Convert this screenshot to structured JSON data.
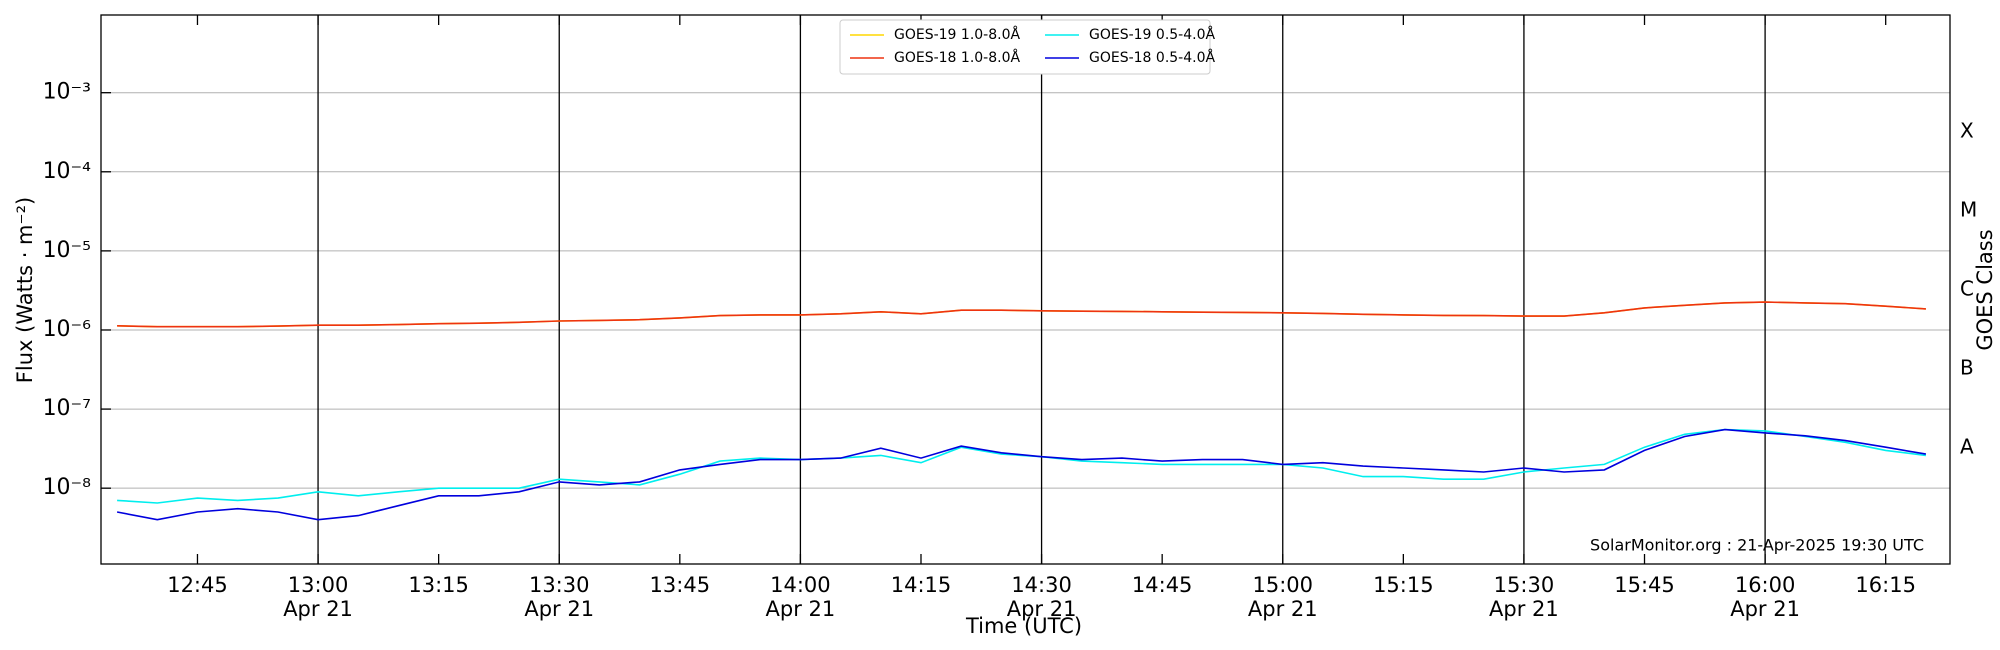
{
  "chart_data": {
    "type": "line",
    "xlabel": "Time (UTC)",
    "ylabel": "Flux (Watts · m⁻²)",
    "y2label": "GOES Class",
    "annotation": "SolarMonitor.org : 21-Apr-2025 19:30 UTC",
    "yscale": "log",
    "grid": true,
    "legend": "upper center",
    "xlim": [
      "12:33",
      "16:23"
    ],
    "xticks": [
      {
        "value": "12:45",
        "label": "12:45"
      },
      {
        "value": "13:00",
        "label": "13:00",
        "date": "Apr 21"
      },
      {
        "value": "13:15",
        "label": "13:15"
      },
      {
        "value": "13:30",
        "label": "13:30",
        "date": "Apr 21"
      },
      {
        "value": "13:45",
        "label": "13:45"
      },
      {
        "value": "14:00",
        "label": "14:00",
        "date": "Apr 21"
      },
      {
        "value": "14:15",
        "label": "14:15"
      },
      {
        "value": "14:30",
        "label": "14:30",
        "date": "Apr 21"
      },
      {
        "value": "14:45",
        "label": "14:45"
      },
      {
        "value": "15:00",
        "label": "15:00",
        "date": "Apr 21"
      },
      {
        "value": "15:15",
        "label": "15:15"
      },
      {
        "value": "15:30",
        "label": "15:30",
        "date": "Apr 21"
      },
      {
        "value": "15:45",
        "label": "15:45"
      },
      {
        "value": "16:00",
        "label": "16:00",
        "date": "Apr 21"
      },
      {
        "value": "16:15",
        "label": "16:15"
      }
    ],
    "ylim": [
      1.1e-09,
      0.0096
    ],
    "yticks": [
      {
        "value": 1e-08,
        "label": "10⁻⁸"
      },
      {
        "value": 1e-07,
        "label": "10⁻⁷"
      },
      {
        "value": 1e-06,
        "label": "10⁻⁶"
      },
      {
        "value": 1e-05,
        "label": "10⁻⁵"
      },
      {
        "value": 0.0001,
        "label": "10⁻⁴"
      },
      {
        "value": 0.001,
        "label": "10⁻³"
      }
    ],
    "y2lim": [
      1.1e-09,
      0.0096
    ],
    "y2ticks": [
      {
        "value": 3.2e-08,
        "label": "A"
      },
      {
        "value": 3.2e-07,
        "label": "B"
      },
      {
        "value": 3.2e-06,
        "label": "C"
      },
      {
        "value": 3.2e-05,
        "label": "M"
      },
      {
        "value": 0.00032,
        "label": "X"
      }
    ],
    "x": [
      "12:35",
      "12:40",
      "12:45",
      "12:50",
      "12:55",
      "13:00",
      "13:05",
      "13:10",
      "13:15",
      "13:20",
      "13:25",
      "13:30",
      "13:35",
      "13:40",
      "13:45",
      "13:50",
      "13:55",
      "14:00",
      "14:05",
      "14:10",
      "14:15",
      "14:20",
      "14:25",
      "14:30",
      "14:35",
      "14:40",
      "14:45",
      "14:50",
      "14:55",
      "15:00",
      "15:05",
      "15:10",
      "15:15",
      "15:20",
      "15:25",
      "15:30",
      "15:35",
      "15:40",
      "15:45",
      "15:50",
      "15:55",
      "16:00",
      "16:05",
      "16:10",
      "16:15",
      "16:20"
    ],
    "series": [
      {
        "name": "GOES-19 1.0-8.0Å",
        "color": "#ffd700",
        "values": [
          1.13e-06,
          1.1e-06,
          1.1e-06,
          1.1e-06,
          1.12e-06,
          1.15e-06,
          1.15e-06,
          1.17e-06,
          1.2e-06,
          1.22e-06,
          1.25e-06,
          1.3e-06,
          1.32e-06,
          1.35e-06,
          1.42e-06,
          1.52e-06,
          1.55e-06,
          1.55e-06,
          1.6e-06,
          1.7e-06,
          1.6e-06,
          1.78e-06,
          1.78e-06,
          1.75e-06,
          1.73e-06,
          1.72e-06,
          1.7e-06,
          1.68e-06,
          1.67e-06,
          1.65e-06,
          1.62e-06,
          1.58e-06,
          1.55e-06,
          1.53e-06,
          1.52e-06,
          1.5e-06,
          1.5e-06,
          1.65e-06,
          1.9e-06,
          2.05e-06,
          2.2e-06,
          2.25e-06,
          2.2e-06,
          2.15e-06,
          2e-06,
          1.85e-06
        ]
      },
      {
        "name": "GOES-18 1.0-8.0Å",
        "color": "#ee3311",
        "values": [
          1.13e-06,
          1.1e-06,
          1.1e-06,
          1.1e-06,
          1.12e-06,
          1.15e-06,
          1.15e-06,
          1.17e-06,
          1.2e-06,
          1.22e-06,
          1.25e-06,
          1.3e-06,
          1.32e-06,
          1.35e-06,
          1.42e-06,
          1.52e-06,
          1.55e-06,
          1.55e-06,
          1.6e-06,
          1.7e-06,
          1.6e-06,
          1.78e-06,
          1.78e-06,
          1.75e-06,
          1.73e-06,
          1.72e-06,
          1.7e-06,
          1.68e-06,
          1.67e-06,
          1.65e-06,
          1.62e-06,
          1.58e-06,
          1.55e-06,
          1.53e-06,
          1.52e-06,
          1.5e-06,
          1.5e-06,
          1.65e-06,
          1.9e-06,
          2.05e-06,
          2.2e-06,
          2.25e-06,
          2.2e-06,
          2.15e-06,
          2e-06,
          1.85e-06
        ]
      },
      {
        "name": "GOES-19 0.5-4.0Å",
        "color": "#00eeee",
        "values": [
          7e-09,
          6.5e-09,
          7.5e-09,
          7e-09,
          7.5e-09,
          9e-09,
          8e-09,
          9e-09,
          1e-08,
          1e-08,
          1e-08,
          1.3e-08,
          1.2e-08,
          1.1e-08,
          1.5e-08,
          2.2e-08,
          2.4e-08,
          2.3e-08,
          2.4e-08,
          2.6e-08,
          2.1e-08,
          3.3e-08,
          2.7e-08,
          2.5e-08,
          2.2e-08,
          2.1e-08,
          2e-08,
          2e-08,
          2e-08,
          2e-08,
          1.8e-08,
          1.4e-08,
          1.4e-08,
          1.3e-08,
          1.3e-08,
          1.6e-08,
          1.8e-08,
          2e-08,
          3.3e-08,
          4.8e-08,
          5.5e-08,
          5.3e-08,
          4.5e-08,
          3.8e-08,
          3e-08,
          2.6e-08
        ]
      },
      {
        "name": "GOES-18 0.5-4.0Å",
        "color": "#0000dd",
        "values": [
          5e-09,
          4e-09,
          5e-09,
          5.5e-09,
          5e-09,
          4e-09,
          4.5e-09,
          6e-09,
          8e-09,
          8e-09,
          9e-09,
          1.2e-08,
          1.1e-08,
          1.2e-08,
          1.7e-08,
          2e-08,
          2.3e-08,
          2.3e-08,
          2.4e-08,
          3.2e-08,
          2.4e-08,
          3.4e-08,
          2.8e-08,
          2.5e-08,
          2.3e-08,
          2.4e-08,
          2.2e-08,
          2.3e-08,
          2.3e-08,
          2e-08,
          2.1e-08,
          1.9e-08,
          1.8e-08,
          1.7e-08,
          1.6e-08,
          1.8e-08,
          1.6e-08,
          1.7e-08,
          3e-08,
          4.5e-08,
          5.5e-08,
          5e-08,
          4.6e-08,
          4e-08,
          3.3e-08,
          2.7e-08
        ]
      }
    ]
  }
}
